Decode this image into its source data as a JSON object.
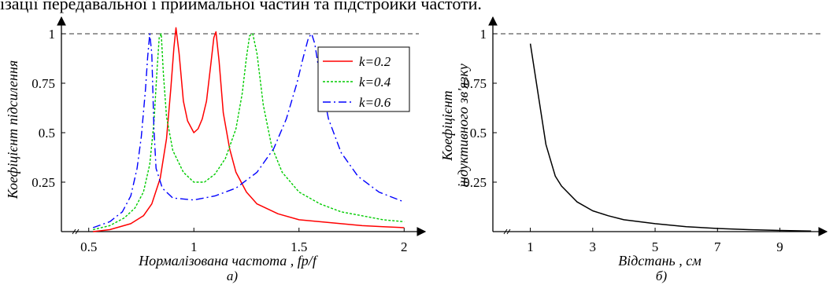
{
  "header_text": "ізації передавальної і приймальної частин та підстройки частоти.",
  "chart_data": [
    {
      "type": "line",
      "caption": "а)",
      "xlabel": "Нормалізована частота , fp/f",
      "ylabel": "Коефіцієнт підсилення",
      "xlim": [
        0.37,
        2.1
      ],
      "ylim": [
        0,
        1.05
      ],
      "x_ticks": [
        0.5,
        1,
        1.5,
        2
      ],
      "y_ticks": [
        0.25,
        0.5,
        0.75,
        1
      ],
      "x_tick_labels": [
        "0.5",
        "1",
        "1.5",
        "2"
      ],
      "y_tick_labels": [
        "0.25",
        "0.5",
        "0.75",
        "1"
      ],
      "reference_line": {
        "y": 1,
        "style": "dashed"
      },
      "grid": false,
      "legend_position": "top-right",
      "colors": {
        "k02": "#ff0000",
        "k04": "#00cc00",
        "k06": "#0000ff"
      },
      "series": [
        {
          "name": "k=0.2",
          "color": "#ff0000",
          "dash": "solid",
          "x": [
            0.52,
            0.6,
            0.7,
            0.76,
            0.8,
            0.84,
            0.87,
            0.89,
            0.905,
            0.915,
            0.93,
            0.95,
            0.97,
            1.0,
            1.02,
            1.04,
            1.06,
            1.08,
            1.095,
            1.105,
            1.12,
            1.14,
            1.17,
            1.2,
            1.25,
            1.3,
            1.4,
            1.5,
            1.6,
            1.7,
            1.8,
            1.9,
            2.0
          ],
          "y": [
            0.0,
            0.01,
            0.04,
            0.08,
            0.14,
            0.27,
            0.47,
            0.72,
            0.93,
            1.03,
            0.9,
            0.66,
            0.56,
            0.5,
            0.52,
            0.57,
            0.66,
            0.84,
            0.98,
            1.01,
            0.86,
            0.6,
            0.42,
            0.3,
            0.2,
            0.14,
            0.09,
            0.06,
            0.05,
            0.04,
            0.03,
            0.025,
            0.02
          ]
        },
        {
          "name": "k=0.4",
          "color": "#00cc00",
          "dash": "dotted",
          "x": [
            0.52,
            0.6,
            0.67,
            0.72,
            0.76,
            0.79,
            0.81,
            0.825,
            0.835,
            0.845,
            0.855,
            0.87,
            0.9,
            0.95,
            1.0,
            1.05,
            1.1,
            1.15,
            1.2,
            1.23,
            1.25,
            1.265,
            1.28,
            1.3,
            1.33,
            1.37,
            1.42,
            1.5,
            1.6,
            1.7,
            1.8,
            1.9,
            2.0
          ],
          "y": [
            0.01,
            0.03,
            0.07,
            0.12,
            0.2,
            0.34,
            0.55,
            0.82,
            0.98,
            1.0,
            0.8,
            0.58,
            0.41,
            0.3,
            0.25,
            0.25,
            0.29,
            0.37,
            0.52,
            0.7,
            0.88,
            0.99,
            1.0,
            0.9,
            0.64,
            0.43,
            0.3,
            0.2,
            0.14,
            0.1,
            0.08,
            0.06,
            0.05
          ]
        },
        {
          "name": "k=0.6",
          "color": "#0000ff",
          "dash": "dashdot",
          "x": [
            0.52,
            0.6,
            0.66,
            0.7,
            0.73,
            0.75,
            0.77,
            0.78,
            0.79,
            0.8,
            0.81,
            0.82,
            0.85,
            0.9,
            1.0,
            1.1,
            1.2,
            1.3,
            1.38,
            1.44,
            1.49,
            1.52,
            1.545,
            1.56,
            1.575,
            1.6,
            1.64,
            1.7,
            1.78,
            1.88,
            2.0
          ],
          "y": [
            0.02,
            0.05,
            0.1,
            0.18,
            0.32,
            0.48,
            0.72,
            0.88,
            1.0,
            0.9,
            0.52,
            0.32,
            0.22,
            0.17,
            0.16,
            0.18,
            0.22,
            0.3,
            0.42,
            0.57,
            0.75,
            0.88,
            0.98,
            1.0,
            0.95,
            0.78,
            0.57,
            0.4,
            0.28,
            0.2,
            0.15
          ]
        }
      ]
    },
    {
      "type": "line",
      "caption": "б)",
      "xlabel": "Відстань , см",
      "ylabel": [
        "Коефіцієнт",
        "індуктивного зв'язку"
      ],
      "xlim": [
        -0.2,
        10.5
      ],
      "ylim": [
        0,
        1.05
      ],
      "x_ticks": [
        1,
        3,
        5,
        7,
        9
      ],
      "y_ticks": [
        0.25,
        0.5,
        0.75,
        1
      ],
      "x_tick_labels": [
        "1",
        "3",
        "5",
        "7",
        "9"
      ],
      "y_tick_labels": [
        "0.25",
        "0.5",
        "0.75",
        "1"
      ],
      "reference_line": {
        "y": 1,
        "style": "dashed"
      },
      "grid": false,
      "series": [
        {
          "color": "#000000",
          "dash": "solid",
          "x": [
            1,
            1.5,
            1.8,
            2,
            2.5,
            3,
            3.5,
            4,
            5,
            6,
            7,
            8,
            9,
            10
          ],
          "y": [
            0.95,
            0.44,
            0.28,
            0.23,
            0.15,
            0.105,
            0.08,
            0.06,
            0.04,
            0.025,
            0.016,
            0.01,
            0.006,
            0.003
          ]
        }
      ]
    }
  ]
}
